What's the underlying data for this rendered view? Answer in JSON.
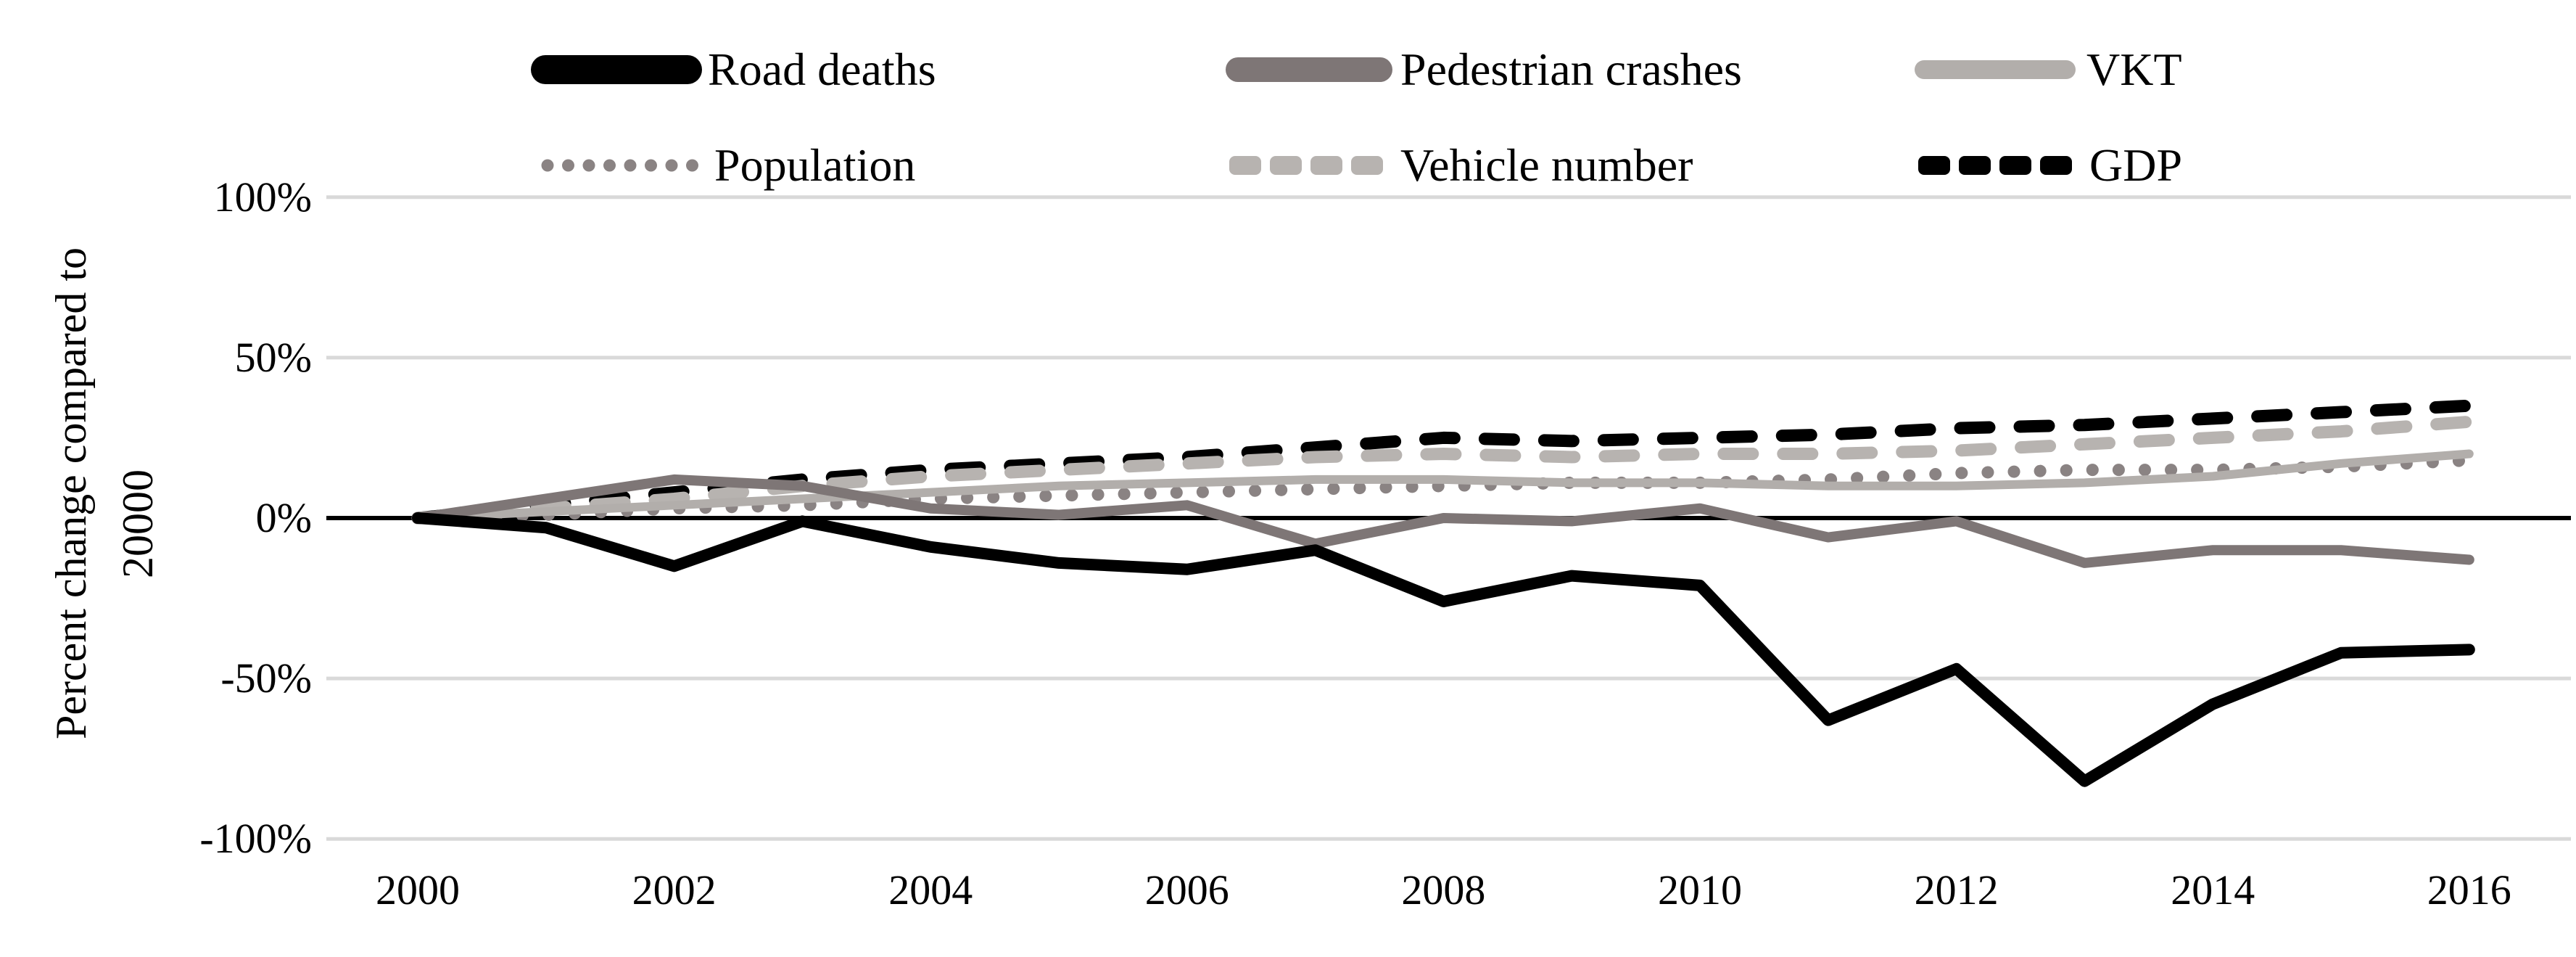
{
  "chart_data": {
    "type": "line",
    "title": "",
    "ylabel_line1": "Percent change compared to",
    "ylabel_line2": "20000",
    "xlabel": "",
    "x": [
      2000,
      2001,
      2002,
      2003,
      2004,
      2005,
      2006,
      2007,
      2008,
      2009,
      2010,
      2011,
      2012,
      2013,
      2014,
      2015,
      2016
    ],
    "x_tick_labels": [
      "2000",
      "2002",
      "2004",
      "2006",
      "2008",
      "2010",
      "2012",
      "2014",
      "2016"
    ],
    "y_ticks": [
      {
        "label": "100%",
        "value": 100
      },
      {
        "label": "50%",
        "value": 50
      },
      {
        "label": "0%",
        "value": 0
      },
      {
        "label": "-50%",
        "value": -50
      },
      {
        "label": "-100%",
        "value": -100
      }
    ],
    "ylim": [
      -115,
      110
    ],
    "grid": "horizontal",
    "legend_position": "top",
    "series": [
      {
        "name": "Road deaths",
        "color": "#000000",
        "style": "solid",
        "line_width": 16,
        "values": [
          0,
          -3,
          -15,
          -1,
          -9,
          -14,
          -16,
          -10,
          -26,
          -18,
          -21,
          -63,
          -47,
          -82,
          -58,
          -42,
          -41
        ]
      },
      {
        "name": "Pedestrian crashes",
        "color": "#7e7676",
        "style": "solid",
        "line_width": 14,
        "values": [
          0,
          6,
          12,
          10,
          3,
          1,
          4,
          -8,
          0,
          -1,
          3,
          -6,
          -1,
          -14,
          -10,
          -10,
          -13
        ]
      },
      {
        "name": "VKT",
        "color": "#b2aeab",
        "style": "solid",
        "line_width": 12,
        "values": [
          0,
          2,
          4,
          6,
          8,
          10,
          11,
          12,
          12,
          11,
          11,
          10,
          10,
          11,
          13,
          17,
          20
        ]
      },
      {
        "name": "Population",
        "color": "#8a8383",
        "style": "dotted",
        "line_width": 17,
        "values": [
          0,
          1,
          3,
          4,
          6,
          7,
          8,
          9,
          10,
          11,
          11,
          12,
          14,
          15,
          15,
          16,
          18
        ]
      },
      {
        "name": "Vehicle number",
        "color": "#b7b3b0",
        "style": "dashed",
        "line_width": 17,
        "values": [
          0,
          3,
          6,
          10,
          13,
          15,
          17,
          19,
          20,
          19,
          20,
          20,
          21,
          23,
          25,
          27,
          30
        ]
      },
      {
        "name": "GDP",
        "color": "#000000",
        "style": "dashed",
        "line_width": 17,
        "values": [
          0,
          4,
          8,
          12,
          15,
          17,
          19,
          22,
          25,
          24,
          25,
          26,
          28,
          29,
          31,
          33,
          35
        ]
      }
    ]
  },
  "colors": {
    "background": "#ffffff",
    "gridline": "#d9d9d9",
    "zero_axis": "#000000",
    "text": "#000000"
  }
}
